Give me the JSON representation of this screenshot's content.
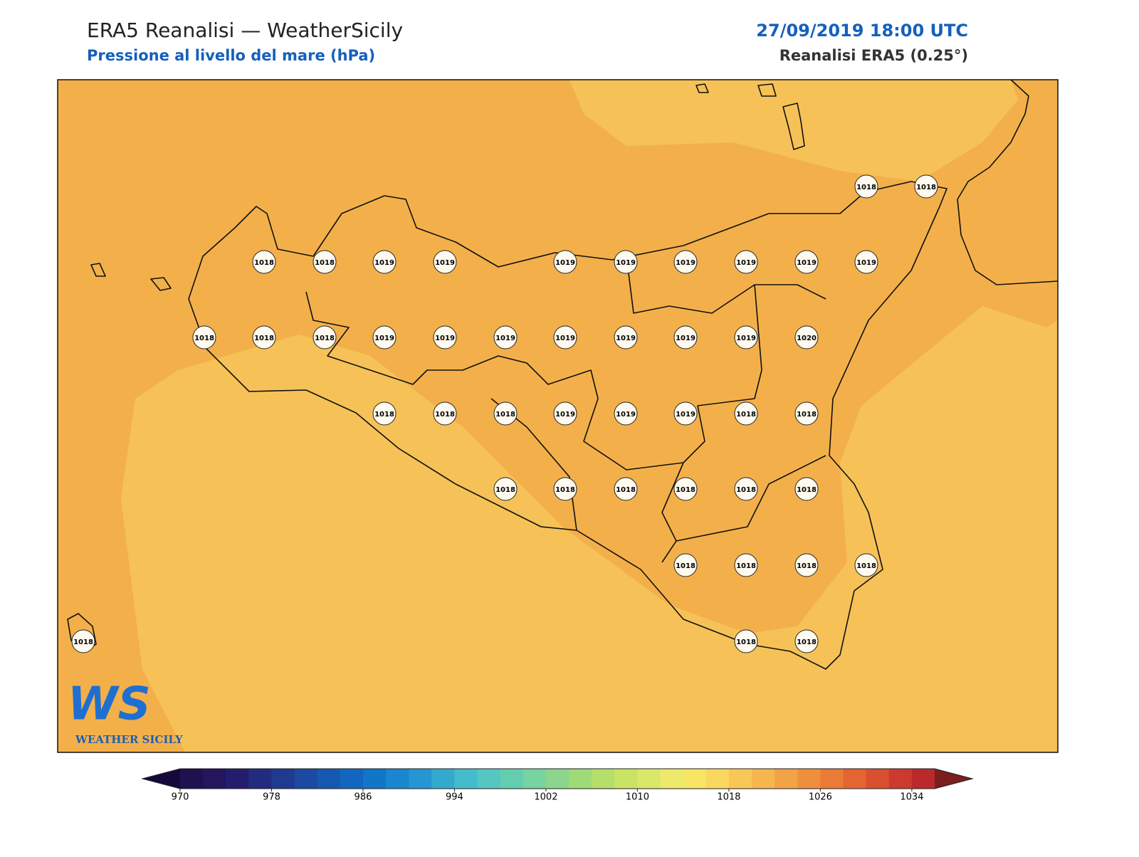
{
  "header": {
    "title": "ERA5 Reanalisi — WeatherSicily",
    "subtitle": "Pressione al livello del mare (hPa)",
    "datetime": "27/09/2019 18:00 UTC",
    "source": "Reanalisi ERA5 (0.25°)"
  },
  "stations": [
    1018,
    1018,
    1018,
    1018,
    1019,
    1019,
    1019,
    1019,
    1019,
    1019,
    1019,
    1019,
    1018,
    1018,
    1018,
    1019,
    1019,
    1019,
    1019,
    1019,
    1019,
    1019,
    1020,
    1018,
    1018,
    1018,
    1019,
    1019,
    1019,
    1018,
    1018,
    1018,
    1018,
    1018,
    1018,
    1018,
    1018,
    1018,
    1018,
    1018,
    1018,
    1018,
    1018,
    1018
  ],
  "colorbar": {
    "range": [
      970,
      1036
    ],
    "ticks": [
      970,
      978,
      986,
      994,
      1002,
      1010,
      1018,
      1026,
      1034
    ],
    "under_color": "#14093a",
    "over_color": "#7a1e1e",
    "colors": [
      "#1f1050",
      "#23155e",
      "#241d6e",
      "#222b80",
      "#1f3a8f",
      "#1c4aa0",
      "#1558b0",
      "#1266bf",
      "#1175c8",
      "#1a86cf",
      "#2596d1",
      "#33aacd",
      "#45bccb",
      "#55c6c0",
      "#64cdb0",
      "#77d3a0",
      "#8bd68c",
      "#a0da78",
      "#b5df6a",
      "#c8e366",
      "#dbe76a",
      "#ece96c",
      "#f8e465",
      "#fad75e",
      "#f8c757",
      "#f5b64f",
      "#f2a346",
      "#ee8f3e",
      "#e97b37",
      "#e36532",
      "#d8502f",
      "#cb3a2c",
      "#bb2a2a"
    ]
  },
  "logo": {
    "mark": "WS",
    "name": "WEATHER SICILY"
  }
}
